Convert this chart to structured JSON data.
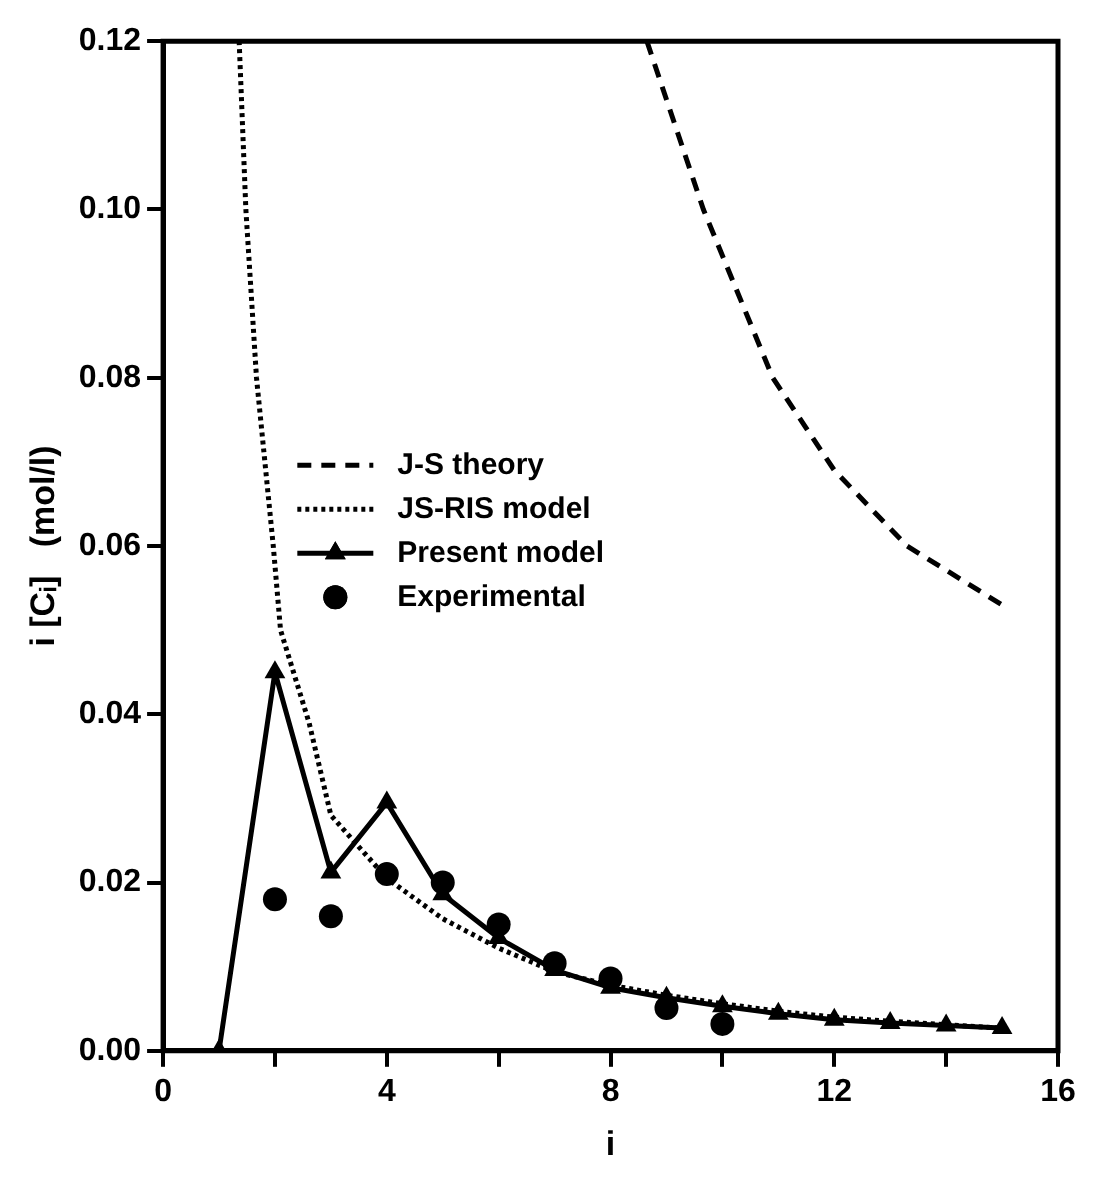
{
  "chart_data": {
    "type": "line",
    "xlabel": "i",
    "ylabel": "i [Cᵢ]   (mol/l)",
    "xlim": [
      0,
      16
    ],
    "xticks": [
      0,
      {
        "value": 2,
        "label": null
      },
      4,
      {
        "value": 6,
        "label": null
      },
      8,
      {
        "value": 10,
        "label": null
      },
      12,
      {
        "value": 14,
        "label": null
      },
      16
    ],
    "ylim": [
      0,
      0.12
    ],
    "yticks": [
      {
        "value": 0,
        "label": "0.00"
      },
      {
        "value": 0.02,
        "label": "0.02"
      },
      {
        "value": 0.04,
        "label": "0.04"
      },
      {
        "value": 0.06,
        "label": "0.06"
      },
      {
        "value": 0.08,
        "label": "0.08"
      },
      {
        "value": 0.1,
        "label": "0.10"
      },
      {
        "value": 0.12,
        "label": "0.12"
      }
    ],
    "grid": false,
    "legend": "center left",
    "series": [
      {
        "name": "J-S theory",
        "color": "#000000",
        "line_style": "dashed",
        "marker": "none",
        "x": [
          8.65,
          9.66,
          10.9,
          12,
          13.3,
          15
        ],
        "values": [
          0.12,
          0.1,
          0.08,
          0.069,
          0.06,
          0.053
        ]
      },
      {
        "name": "JS-RIS model",
        "color": "#000000",
        "line_style": "dotted",
        "marker": "none",
        "x": [
          1.36,
          1.48,
          1.67,
          1.97,
          2.1,
          2.61,
          3,
          4,
          5,
          6,
          7,
          8,
          9,
          10,
          11,
          12,
          13,
          14,
          15
        ],
        "values": [
          0.12,
          0.1,
          0.08,
          0.06,
          0.05,
          0.039,
          0.028,
          0.0205,
          0.0157,
          0.0122,
          0.0094,
          0.0078,
          0.0066,
          0.0056,
          0.0047,
          0.004,
          0.0035,
          0.0031,
          0.0027
        ]
      },
      {
        "name": "Present model",
        "color": "#000000",
        "line_style": "solid",
        "marker": "triangle",
        "x": [
          1,
          2,
          3,
          4,
          5,
          6,
          7,
          8,
          9,
          10,
          11,
          12,
          13,
          14,
          15
        ],
        "values": [
          0,
          0.045,
          0.0212,
          0.0295,
          0.0186,
          0.0134,
          0.0096,
          0.0075,
          0.0063,
          0.0053,
          0.0044,
          0.0037,
          0.0033,
          0.003,
          0.0027
        ]
      },
      {
        "name": "Experimental",
        "type": "scatter",
        "color": "#000000",
        "marker": "circle",
        "x": [
          2,
          3,
          4,
          5,
          6,
          7,
          8,
          9,
          10
        ],
        "values": [
          0.018,
          0.016,
          0.021,
          0.02,
          0.015,
          0.0104,
          0.0086,
          0.0051,
          0.0032
        ]
      }
    ]
  }
}
